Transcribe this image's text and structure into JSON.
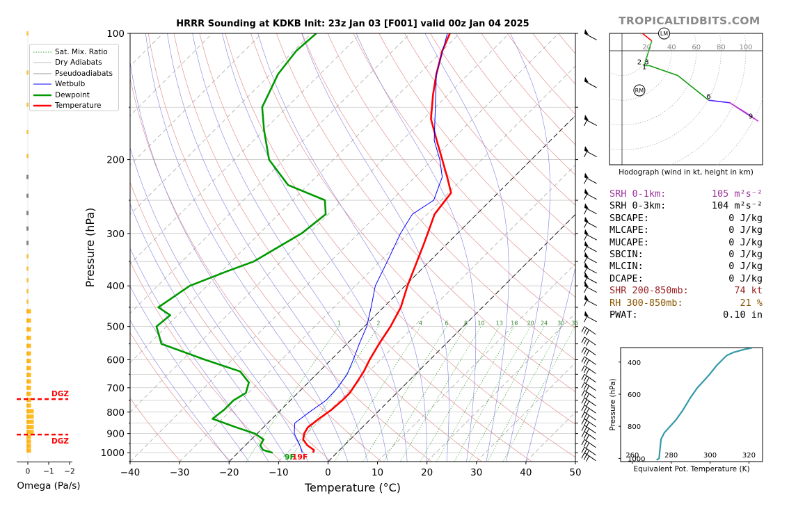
{
  "title": "HRRR Sounding at KDKB Init: 23z Jan 03 [F001] valid 00z Jan 04 2025",
  "brand": "TROPICALTIDBITS.COM",
  "skewt": {
    "xlabel": "Temperature (°C)",
    "ylabel": "Pressure (hPa)",
    "xticks": [
      "−40",
      "−30",
      "−20",
      "−10",
      "0",
      "10",
      "20",
      "30",
      "40",
      "50"
    ],
    "yticks": [
      "100",
      "200",
      "300",
      "400",
      "500",
      "600",
      "700",
      "800",
      "900",
      "1000"
    ],
    "legend": [
      "Sat. Mix. Ratio",
      "Dry Adiabats",
      "Pseudoadiabats",
      "Wetbulb",
      "Dewpoint",
      "Temperature"
    ],
    "mixing_ratio_labels": [
      "1",
      "2",
      "4",
      "6",
      "8",
      "10",
      "13",
      "16",
      "20",
      "24",
      "30",
      "36"
    ],
    "surface_dewpoint_label": "9F",
    "surface_temp_label": "19F",
    "colors": {
      "temperature": "#ff0000",
      "dewpoint": "#009900",
      "wetbulb": "#0000ff",
      "dry_adiabat": "#e08080",
      "pseudoadiabat": "#8080e0",
      "mix_ratio": "#33aa33"
    }
  },
  "chart_data": [
    {
      "type": "line",
      "title": "HRRR Sounding at KDKB Init: 23z Jan 03 [F001] valid 00z Jan 04 2025",
      "xlabel": "Temperature (°C)",
      "ylabel": "Pressure (hPa)",
      "xlim": [
        -40,
        50
      ],
      "ylim": [
        1050,
        100
      ],
      "yscale": "log",
      "skew": "45 degrees",
      "series": [
        {
          "name": "Temperature",
          "pressure": [
            1000,
            985,
            960,
            930,
            900,
            870,
            830,
            790,
            750,
            720,
            680,
            640,
            600,
            550,
            500,
            450,
            400,
            350,
            320,
            300,
            270,
            240,
            220,
            200,
            180,
            160,
            140,
            125,
            110,
            100
          ],
          "values": [
            -4.8,
            -5.2,
            -7.5,
            -9.5,
            -10.5,
            -11.0,
            -10.5,
            -9.8,
            -9.5,
            -9.5,
            -10.2,
            -11.0,
            -12.2,
            -13.5,
            -14.7,
            -16.5,
            -19.5,
            -22.5,
            -24.5,
            -26.0,
            -28.5,
            -29.5,
            -33.5,
            -38.0,
            -43.0,
            -48.5,
            -53.0,
            -56.5,
            -60.0,
            -62.0
          ]
        },
        {
          "name": "Dewpoint",
          "pressure": [
            1000,
            985,
            960,
            930,
            900,
            870,
            830,
            790,
            750,
            720,
            680,
            640,
            600,
            550,
            500,
            470,
            450,
            400,
            370,
            350,
            300,
            270,
            250,
            230,
            200,
            170,
            150,
            125,
            110,
            100
          ],
          "values": [
            -13.0,
            -15.5,
            -17.0,
            -17.5,
            -20.5,
            -25.5,
            -32.0,
            -31.5,
            -31.5,
            -30.5,
            -32.0,
            -36.0,
            -45.5,
            -57.5,
            -62.0,
            -61.5,
            -65.5,
            -63.5,
            -59.0,
            -55.5,
            -51.5,
            -50.5,
            -53.5,
            -64.0,
            -73.0,
            -80.0,
            -85.0,
            -88.5,
            -89.5,
            -89.0
          ]
        },
        {
          "name": "Wetbulb",
          "pressure": [
            1000,
            960,
            900,
            850,
            800,
            750,
            700,
            650,
            600,
            550,
            500,
            450,
            400,
            350,
            300,
            270,
            250,
            220,
            200,
            180,
            150,
            125,
            100
          ],
          "values": [
            -7.0,
            -9.0,
            -12.5,
            -14.5,
            -13.8,
            -12.8,
            -13.0,
            -13.8,
            -15.5,
            -17.5,
            -19.5,
            -22.5,
            -26.0,
            -28.5,
            -31.5,
            -33.0,
            -31.5,
            -34.5,
            -38.5,
            -43.5,
            -50.0,
            -56.5,
            -62.5
          ]
        }
      ]
    },
    {
      "type": "line",
      "title": "Hodograph (wind in kt, height in km)",
      "xticks": [
        "20",
        "40",
        "60",
        "80",
        "100"
      ],
      "height_labels": [
        "1",
        "2",
        "3",
        "6",
        "9"
      ],
      "markers": [
        "LM",
        "RM"
      ],
      "series": [
        {
          "name": "0-1 km",
          "u": [
            8,
            14,
            24
          ],
          "v": [
            20,
            16,
            8
          ]
        },
        {
          "name": "1-3 km",
          "u": [
            24,
            18,
            22
          ],
          "v": [
            8,
            -12,
            -12
          ]
        },
        {
          "name": "3-6 km",
          "u": [
            22,
            45,
            70
          ],
          "v": [
            -12,
            -20,
            -40
          ]
        },
        {
          "name": "6-9 km",
          "u": [
            70,
            87,
            107
          ],
          "v": [
            -40,
            -42,
            -55
          ]
        }
      ]
    },
    {
      "type": "line",
      "xlabel": "Equivalent Pot. Temperature (K)",
      "ylabel": "Pressure (hPa)",
      "xticks": [
        "260",
        "280",
        "300",
        "320"
      ],
      "yticks": [
        "400",
        "600",
        "800",
        "1000"
      ],
      "xlim": [
        254,
        327
      ],
      "ylim": [
        1020,
        310
      ],
      "series": [
        {
          "name": "Theta-E",
          "pressure": [
            1010,
            1000,
            950,
            880,
            840,
            760,
            700,
            620,
            560,
            480,
            420,
            360,
            340,
            320,
            312
          ],
          "values": [
            272.5,
            273.8,
            274.2,
            274.8,
            276.5,
            282.5,
            286,
            290,
            293.5,
            299.5,
            303.5,
            308.5,
            312,
            318,
            321.5
          ]
        }
      ]
    },
    {
      "type": "bar",
      "xlabel": "Omega (Pa/s)",
      "xticks": [
        "0",
        "−1",
        "−2"
      ],
      "annotations": [
        "DGZ",
        "DGZ"
      ]
    }
  ],
  "stats": [
    {
      "label": "SRH 0-1km:",
      "value": "105 m²s⁻²",
      "color": "#993399"
    },
    {
      "label": "SRH 0-3km:",
      "value": "104 m²s⁻²",
      "color": "#000000"
    },
    {
      "label": "SBCAPE:",
      "value": "0 J/kg",
      "color": "#000000"
    },
    {
      "label": "MLCAPE:",
      "value": "0 J/kg",
      "color": "#000000"
    },
    {
      "label": "MUCAPE:",
      "value": "0 J/kg",
      "color": "#000000"
    },
    {
      "label": "SBCIN:",
      "value": "0 J/kg",
      "color": "#000000"
    },
    {
      "label": "MLCIN:",
      "value": "0 J/kg",
      "color": "#000000"
    },
    {
      "label": "DCAPE:",
      "value": "0 J/kg",
      "color": "#000000"
    },
    {
      "label": "SHR 200-850mb:",
      "value": "74 kt",
      "color": "#992222"
    },
    {
      "label": "RH 300-850mb:",
      "value": "21 %",
      "color": "#885500"
    },
    {
      "label": "PWAT:",
      "value": "0.10 in",
      "color": "#000000"
    }
  ]
}
